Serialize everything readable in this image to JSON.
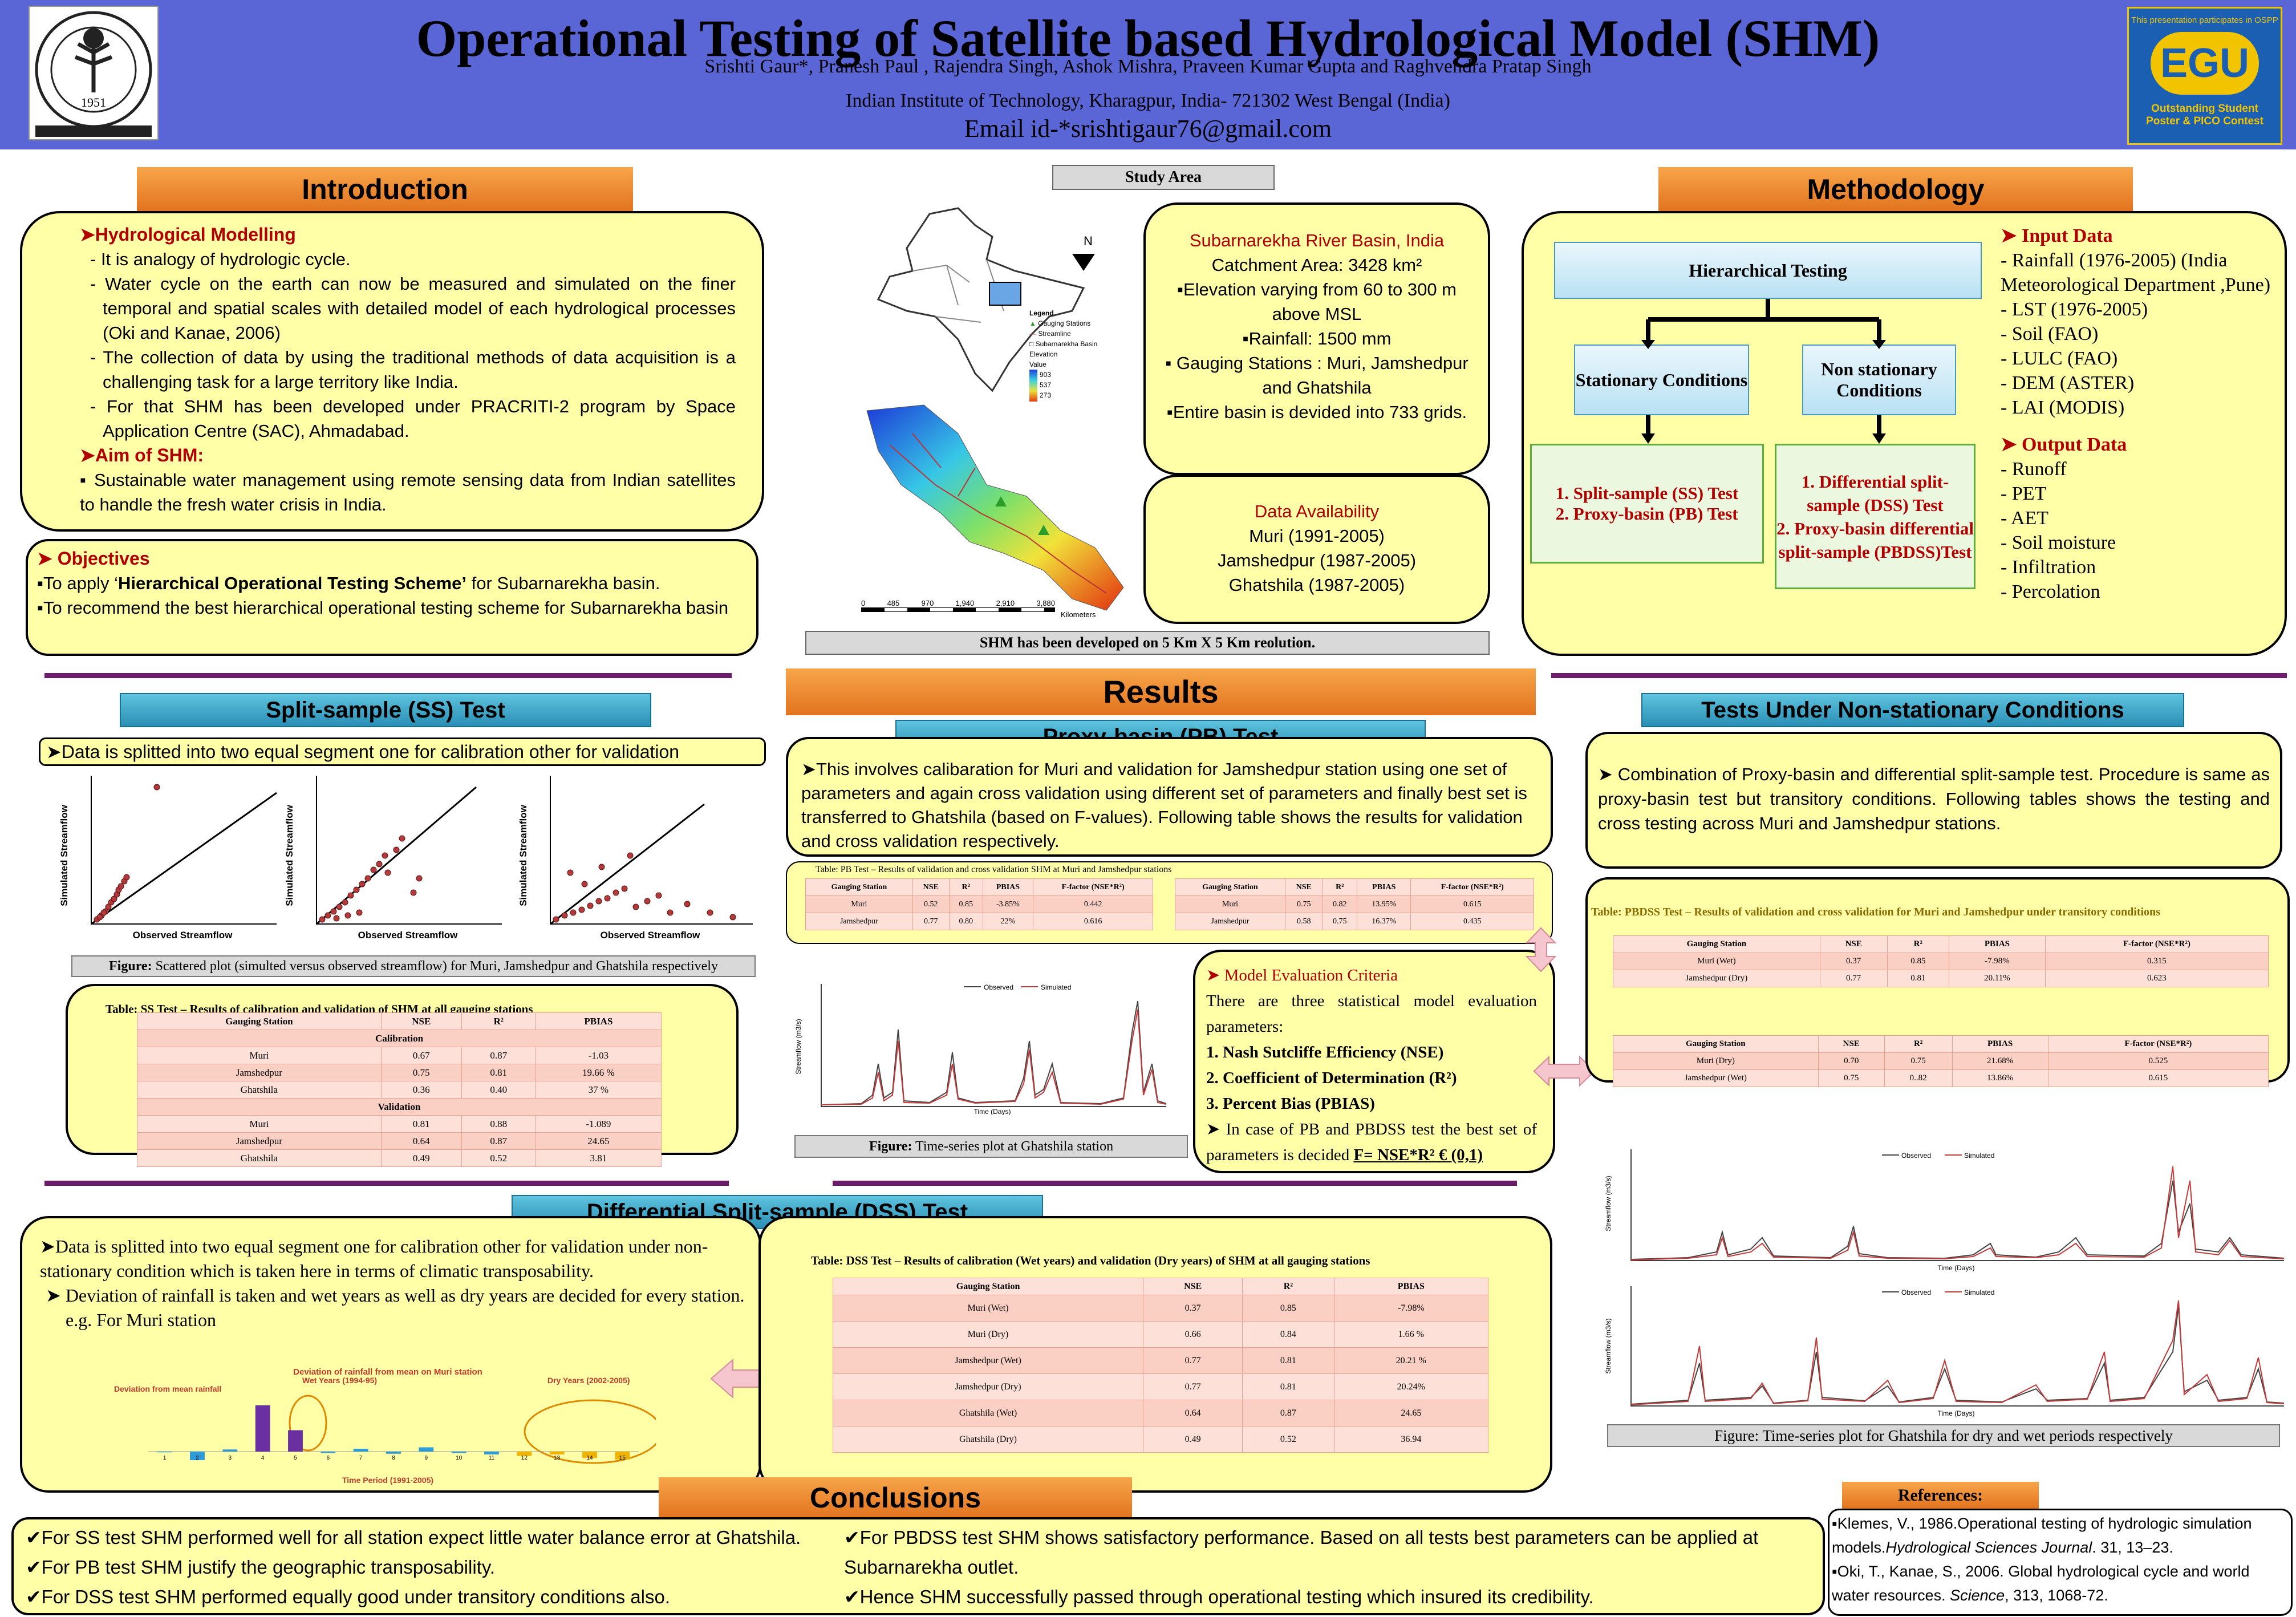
{
  "header": {
    "title": "Operational Testing of  Satellite based Hydrological Model (SHM)",
    "authors": "Srishti Gaur*,  Pranesh Paul ,  Rajendra Singh,  Ashok Mishra,  Praveen Kumar Gupta  and  Raghvendra Pratap Singh",
    "affiliation": "Indian Institute of Technology, Kharagpur, India- 721302 West Bengal (India)",
    "email": "Email id-*srishtigaur76@gmail.com",
    "egu_top": "This presentation participates in OSPP",
    "egu_logo": "EGU",
    "egu_bottom": "Outstanding Student Poster & PICO Contest",
    "iit_year": "1951"
  },
  "intro": {
    "heading": "Introduction",
    "h1": "Hydrological Modelling",
    "items": [
      "It is analogy of hydrologic cycle.",
      "Water cycle on the earth can now be measured and simulated on the finer temporal and spatial scales with detailed model of each hydrological processes (Oki and Kanae, 2006)",
      "The collection of  data by using the traditional methods of data acquisition is a challenging task for a large territory like India.",
      "For that SHM has been developed under PRACRITI-2 program by  Space Application Centre (SAC), Ahmadabad."
    ],
    "h2": "Aim of SHM:",
    "aim": "Sustainable water management using remote sensing data from Indian satellites to handle the fresh water crisis in India."
  },
  "objectives": {
    "heading": "Objectives",
    "o1a": "To apply ‘",
    "o1b": "Hierarchical Operational Testing Scheme’",
    "o1c": " for Subarnarekha  basin.",
    "o2": "To recommend the best hierarchical operational testing scheme for Subarnarekha basin"
  },
  "study": {
    "heading": "Study Area",
    "caption": "SHM has been developed on 5 Km X 5 Km reolution.",
    "basin_title": "Subarnarekha River Basin, India",
    "lines": [
      "Catchment  Area: 3428 km²",
      "▪Elevation varying from 60 to 300 m above MSL",
      "▪Rainfall: 1500 mm",
      "▪ Gauging Stations : Muri, Jamshedpur and Ghatshila",
      "▪Entire basin is devided into 733 grids."
    ],
    "avail_title": "Data Availability",
    "avail": [
      "Muri (1991-2005)",
      "Jamshedpur (1987-2005)",
      "Ghatshila (1987-2005)"
    ],
    "legend": [
      "Legend",
      "Gauging Stations",
      "Streamline",
      "Subarnarekha Basin",
      "Elevation",
      "Value",
      "903",
      "537",
      "273",
      "4"
    ],
    "scale": [
      "0",
      "485",
      "970",
      "1,940",
      "2,910",
      "3,880"
    ],
    "scale_unit": "Kilometers"
  },
  "method": {
    "heading": "Methodology",
    "hier": "Hierarchical Testing",
    "stat": "Stationary Conditions",
    "nonstat": "Non stationary Conditions",
    "left": [
      "1.  Split-sample (SS) Test",
      "2.  Proxy-basin (PB) Test"
    ],
    "right": [
      "1.  Differential split-sample (DSS) Test",
      "2.  Proxy-basin differential split-sample (PBDSS)Test"
    ],
    "input_title": "Input Data",
    "input": [
      " - Rainfall (1976-2005) (India Meteorological Department ,Pune)",
      "-    LST (1976-2005)",
      "-    Soil (FAO)",
      "-    LULC (FAO)",
      "-    DEM (ASTER)",
      "-    LAI (MODIS)"
    ],
    "output_title": "Output Data",
    "output": [
      "-    Runoff",
      "-    PET",
      "-    AET",
      "-    Soil moisture",
      "-    Infiltration",
      "-    Percolation"
    ]
  },
  "results": {
    "heading": "Results"
  },
  "ss": {
    "heading": "Split-sample (SS) Test",
    "text": "Data is splitted into two equal segment one for calibration other for validation",
    "figcap_b": "Figure:",
    "figcap": " Scattered plot (simulted versus observed streamflow) for Muri, Jamshedpur and Ghatshila respectively",
    "xlabel": "Observed Streamflow",
    "ylabel": "Simulated Streamflow",
    "table_title": "Table: SS Test – Results of calibration and validation of SHM at all gauging stations",
    "cols": [
      "Gauging Station",
      "NSE",
      "R²",
      "PBIAS"
    ],
    "cal": "Calibration",
    "val": "Validation",
    "rows_cal": [
      [
        "Muri",
        "0.67",
        "0.87",
        "-1.03"
      ],
      [
        "Jamshedpur",
        "0.75",
        "0.81",
        "19.66 %"
      ],
      [
        "Ghatshila",
        "0.36",
        "0.40",
        "37 %"
      ]
    ],
    "rows_val": [
      [
        "Muri",
        "0.81",
        "0.88",
        "-1.089"
      ],
      [
        "Jamshedpur",
        "0.64",
        "0.87",
        "24.65"
      ],
      [
        "Ghatshila",
        "0.49",
        "0.52",
        "3.81"
      ]
    ]
  },
  "pb": {
    "heading": "Proxy-basin (PB) Test",
    "text": "This involves calibaration for Muri and validation for Jamshedpur station using one set of parameters and again cross validation using different set of parameters and finally best set is transferred to Ghatshila  (based on F-values). Following table shows the results for validation and cross validation respectively.",
    "table_title": "Table: PB Test – Results of validation and cross validation SHM at Muri and Jamshedpur stations",
    "cols": [
      "Gauging Station",
      "NSE",
      "R²",
      "PBIAS",
      "F-factor (NSE*R²)"
    ],
    "t1": [
      [
        "Muri",
        "0.52",
        "0.85",
        "-3.85%",
        "0.442"
      ],
      [
        "Jamshedpur",
        "0.77",
        "0.80",
        "22%",
        "0.616"
      ]
    ],
    "t2": [
      [
        "Muri",
        "0.75",
        "0.82",
        "13.95%",
        "0.615"
      ],
      [
        "Jamshedpur",
        "0.58",
        "0.75",
        "16.37%",
        "0.435"
      ]
    ],
    "figcap_b": "Figure:",
    "figcap": " Time-series plot at Ghatshila station",
    "legend": [
      "Observed",
      "Simulated"
    ],
    "xlabel": "Time (Days)",
    "ylabel": "Streamflow (m3/s)"
  },
  "criteria": {
    "heading": "Model Evaluation Criteria",
    "intro": "There are three statistical model evaluation parameters:",
    "items": [
      "1.  Nash Sutcliffe Efficiency (NSE)",
      "2.  Coefficient of Determination (R²)",
      "3.  Percent Bias (PBIAS)"
    ],
    "last": "In case of PB and PBDSS test the best set of parameters is decided",
    "formula": "F= NSE*R²   € (0,1)"
  },
  "nonstat": {
    "heading": "Tests Under Non-stationary Conditions",
    "text": "Combination  of Proxy-basin and differential split-sample test. Procedure is same as proxy-basin test but transitory conditions. Following tables shows the testing and cross testing across Muri and Jamshedpur stations.",
    "table_title": "Table: PBDSS Test – Results of validation and cross validation for Muri and Jamshedpur under transitory conditions",
    "cols": [
      "Gauging Station",
      "NSE",
      "R²",
      "PBIAS",
      "F-factor (NSE*R²)"
    ],
    "t1": [
      [
        "Muri  (Wet)",
        "0.37",
        "0.85",
        "-7.98%",
        "0.315"
      ],
      [
        "Jamshedpur  (Dry)",
        "0.77",
        "0.81",
        "20.11%",
        "0.623"
      ]
    ],
    "t2": [
      [
        "Muri  (Dry)",
        "0.70",
        "0.75",
        "21.68%",
        "0.525"
      ],
      [
        "Jamshedpur  (Wet)",
        "0.75",
        "0..82",
        "13.86%",
        "0.615"
      ]
    ],
    "figcap": "Figure: Time-series plot for Ghatshila for dry and wet periods respectively"
  },
  "dss": {
    "heading": "Differential Split-sample (DSS) Test",
    "p1": "Data is splitted into two equal segment one for calibration other for validation under non-stationary condition which is taken here in terms of climatic transposability.",
    "p2": "Deviation of rainfall is taken and wet years as well as dry years are decided for every station.   e.g.  For Muri station",
    "chart_title": "Deviation of rainfall from mean on Muri station",
    "chart_ylabel": "Deviation from mean rainfall",
    "chart_xlabel": "Time Period (1991-2005)",
    "wet": "Wet Years (1994-95)",
    "dry": "Dry Years (2002-2005)",
    "table_title": "Table: DSS Test – Results of calibration (Wet years)  and validation (Dry years) of SHM at all  gauging stations",
    "cols": [
      "Gauging Station",
      "NSE",
      "R²",
      "PBIAS"
    ],
    "rows": [
      [
        "Muri (Wet)",
        "0.37",
        "0.85",
        "-7.98%"
      ],
      [
        "Muri (Dry)",
        "0.66",
        "0.84",
        "1.66 %"
      ],
      [
        "Jamshedpur (Wet)",
        "0.77",
        "0.81",
        "20.21 %"
      ],
      [
        "Jamshedpur (Dry)",
        "0.77",
        "0.81",
        "20.24%"
      ],
      [
        "Ghatshila (Wet)",
        "0.64",
        "0.87",
        "24.65"
      ],
      [
        "Ghatshila (Dry)",
        "0.49",
        "0.52",
        "36.94"
      ]
    ]
  },
  "conclusions": {
    "heading": "Conclusions",
    "left": [
      "For SS test SHM performed well for all station expect little water balance error at Ghatshila.",
      "For PB test SHM justify the geographic transposability.",
      "For  DSS test SHM performed equally good under transitory conditions also."
    ],
    "right": [
      "For PBDSS test SHM shows satisfactory performance. Based on all tests best parameters can be applied at Subarnarekha outlet.",
      "Hence SHM successfully passed through operational testing which insured its credibility."
    ]
  },
  "references": {
    "heading": "References:",
    "r1a": "Klemes, V., 1986.Operational testing of hydrologic simulation models.",
    "r1b": "Hydrological Sciences Journal",
    "r1c": ". 31, 13–23.",
    "r2a": "Oki, T., Kanae, S., 2006. Global hydrological cycle and world water resources. ",
    "r2b": "Science",
    "r2c": ", 313, 1068-72."
  },
  "chart_data": [
    {
      "type": "bar",
      "title": "Deviation of rainfall from mean on Muri station",
      "xlabel": "Time Period (1991-2005)",
      "ylabel": "Deviation from mean rainfall",
      "categories": [
        "1",
        "2",
        "3",
        "4",
        "5",
        "6",
        "7",
        "8",
        "9",
        "10",
        "11",
        "12",
        "13",
        "14",
        "15"
      ],
      "values": [
        -10,
        -120,
        30,
        650,
        300,
        -20,
        40,
        -30,
        60,
        -20,
        -40,
        -60,
        -40,
        -90,
        -110
      ],
      "ylim": [
        -200,
        800
      ]
    }
  ]
}
